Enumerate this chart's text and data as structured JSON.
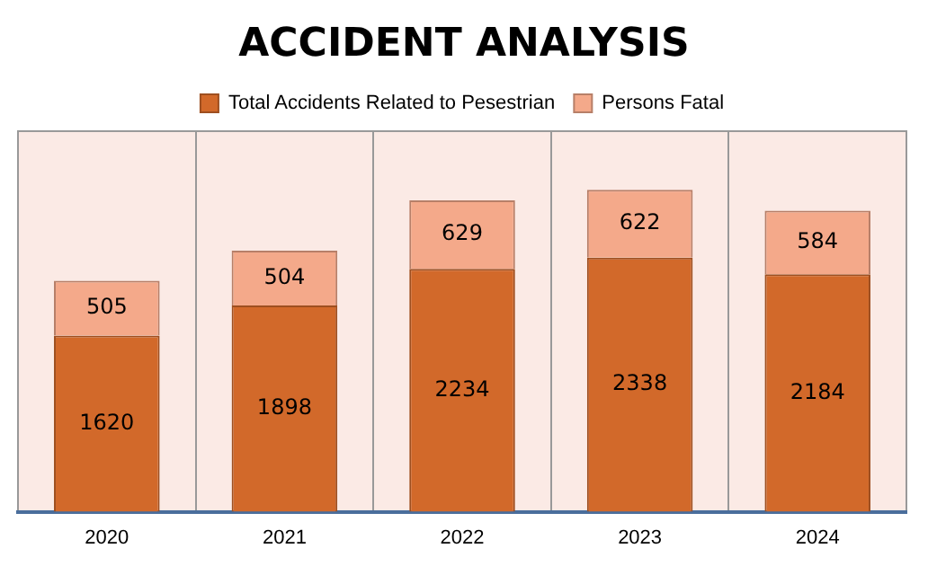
{
  "chart_data": {
    "type": "bar",
    "title": "ACCIDENT ANALYSIS",
    "stacked": true,
    "data_labels": true,
    "grid": "x",
    "legend": "top",
    "categories": [
      "2020",
      "2021",
      "2022",
      "2023",
      "2024"
    ],
    "series": [
      {
        "name": "Total Accidents Related to Pesestrian",
        "color": "#d2692a",
        "values": [
          1620,
          1898,
          2234,
          2338,
          2184
        ]
      },
      {
        "name": "Persons Fatal",
        "color": "#f4a98a",
        "values": [
          505,
          504,
          629,
          622,
          584
        ]
      }
    ]
  }
}
